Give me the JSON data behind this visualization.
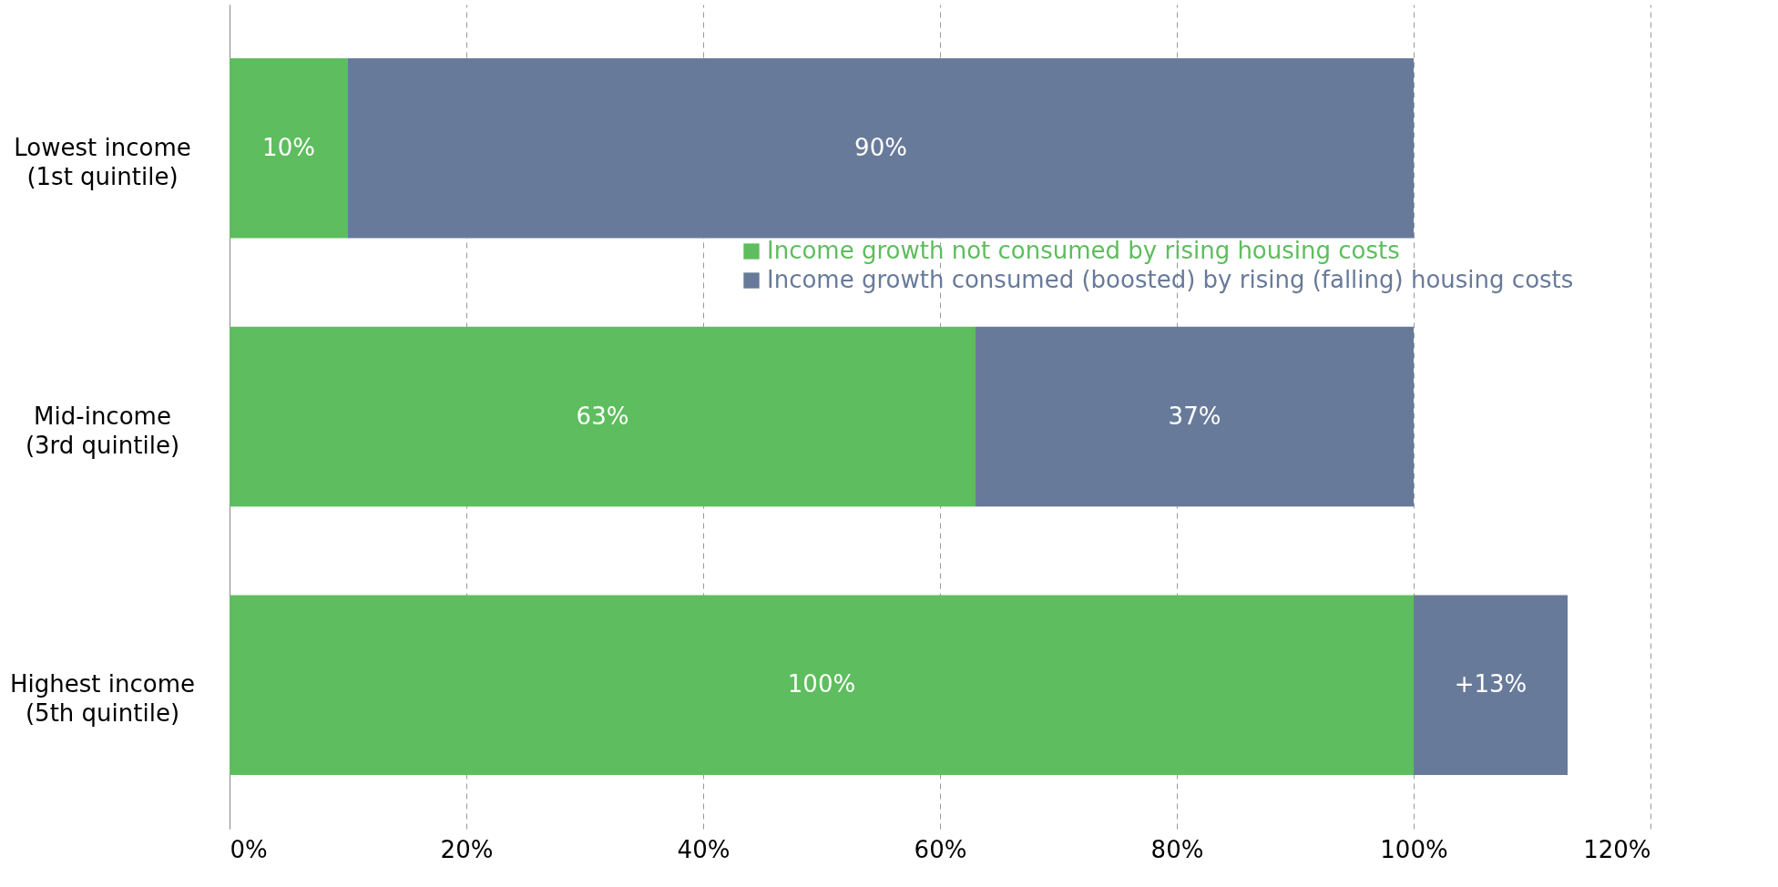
{
  "chart_data": {
    "type": "bar",
    "orientation": "horizontal",
    "stacked": true,
    "categories": [
      "Lowest income (1st quintile)",
      "Mid-income (3rd quintile)",
      "Highest income (5th quintile)"
    ],
    "series": [
      {
        "name": "Income growth not consumed by rising housing costs",
        "color": "#5ebd5e",
        "values": [
          10,
          63,
          100
        ],
        "value_labels": [
          "10%",
          "63%",
          "100%"
        ]
      },
      {
        "name": "Income growth consumed (boosted) by rising (falling) housing costs",
        "color": "#687a9a",
        "values": [
          90,
          37,
          13
        ],
        "value_labels": [
          "90%",
          "37%",
          "+13%"
        ]
      }
    ],
    "xlim": [
      0,
      120
    ],
    "xticks": [
      {
        "value": 0,
        "label": "0%"
      },
      {
        "value": 20,
        "label": "20%"
      },
      {
        "value": 40,
        "label": "40%"
      },
      {
        "value": 60,
        "label": "60%"
      },
      {
        "value": 80,
        "label": "80%"
      },
      {
        "value": 100,
        "label": "100%"
      },
      {
        "value": 120,
        "label": "120%"
      }
    ],
    "grid": "x",
    "legend": "top"
  }
}
